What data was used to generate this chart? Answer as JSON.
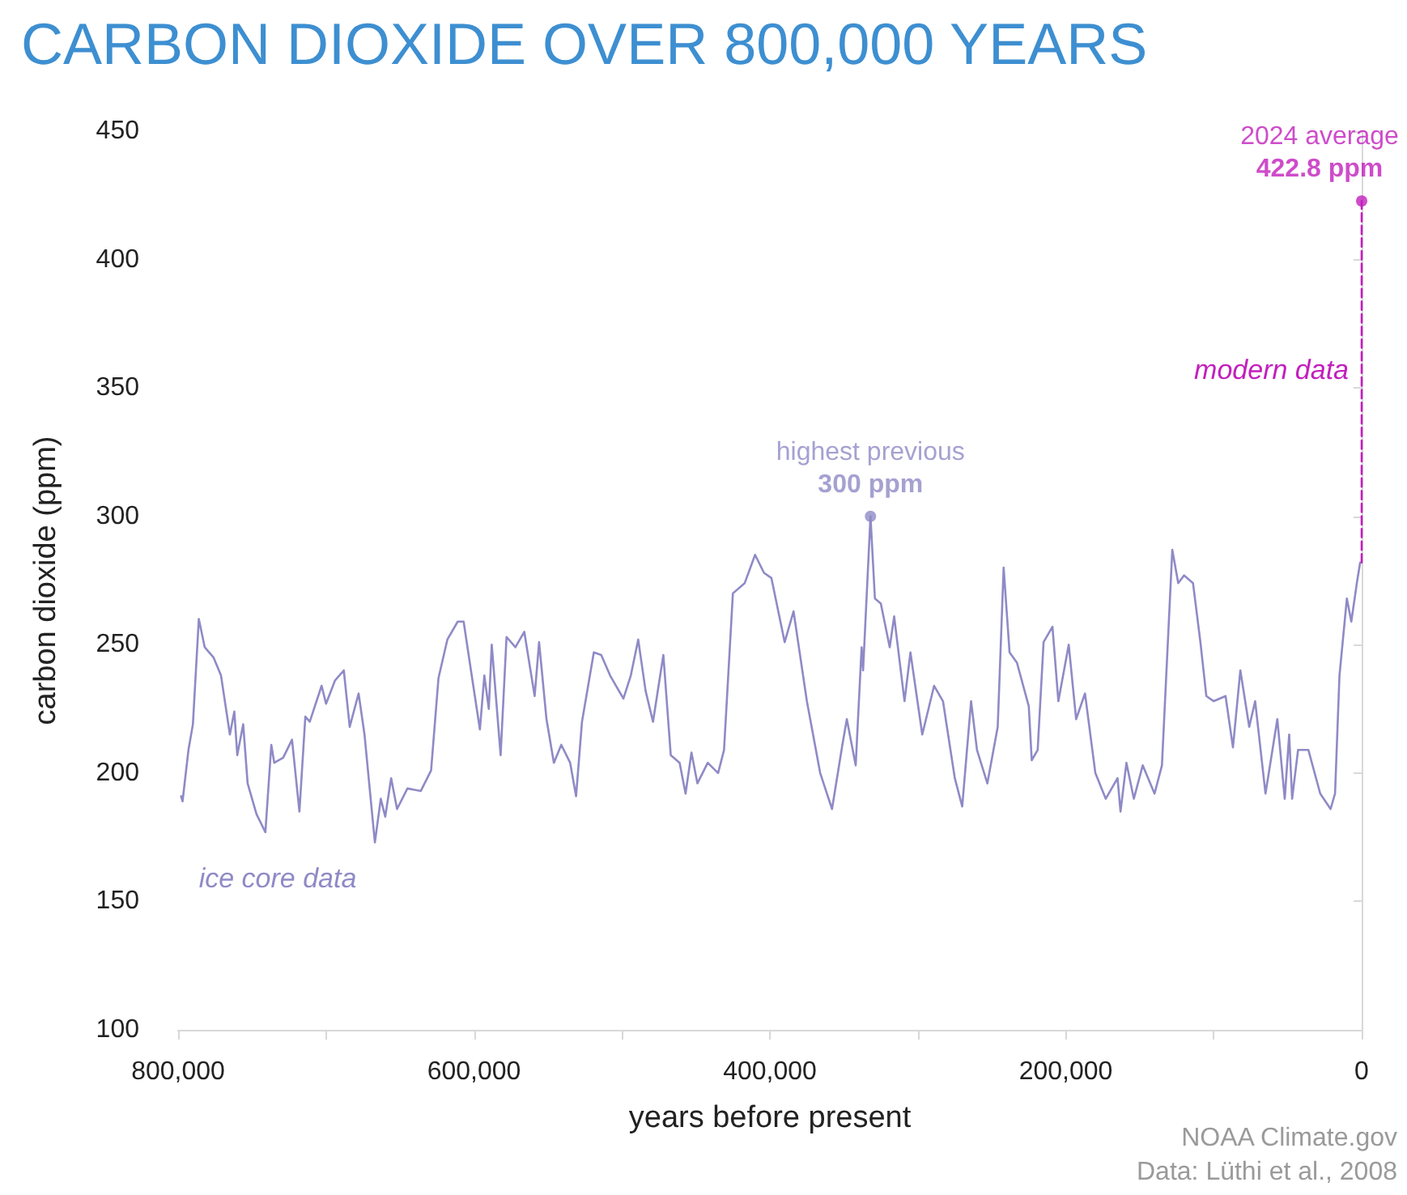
{
  "chart_data": {
    "type": "line",
    "title": "CARBON DIOXIDE OVER 800,000 YEARS",
    "xlabel": "years before present",
    "ylabel": "carbon dioxide (ppm)",
    "xlim": [
      800000,
      0
    ],
    "ylim": [
      100,
      450
    ],
    "xticks": [
      {
        "value": 800000,
        "label": "800,000"
      },
      {
        "value": 700000,
        "label": null
      },
      {
        "value": 600000,
        "label": "600,000"
      },
      {
        "value": 500000,
        "label": null
      },
      {
        "value": 400000,
        "label": "400,000"
      },
      {
        "value": 300000,
        "label": null
      },
      {
        "value": 200000,
        "label": "200,000"
      },
      {
        "value": 100000,
        "label": null
      },
      {
        "value": 0,
        "label": "0"
      }
    ],
    "yticks": [
      100,
      150,
      200,
      250,
      300,
      350,
      400,
      450
    ],
    "grid": false,
    "legend": false,
    "series": [
      {
        "name": "ice core data",
        "color": "#8f8ac6",
        "line_style": "solid",
        "x": [
          798000,
          797000,
          793000,
          790000,
          786000,
          782000,
          776000,
          771000,
          765000,
          762000,
          760000,
          756000,
          753000,
          747000,
          741000,
          737000,
          735000,
          729000,
          723000,
          718000,
          714000,
          711000,
          703000,
          700000,
          694000,
          688000,
          684000,
          678000,
          674000,
          667000,
          663000,
          660000,
          656000,
          652000,
          645000,
          636000,
          629000,
          624000,
          618000,
          611000,
          607000,
          601000,
          596000,
          593000,
          590000,
          588000,
          582000,
          578000,
          572000,
          566000,
          559000,
          556000,
          551000,
          546000,
          541000,
          535000,
          531000,
          527000,
          519000,
          514000,
          508000,
          499000,
          494000,
          489000,
          484000,
          479000,
          472000,
          467000,
          461000,
          457000,
          453000,
          449000,
          442000,
          435000,
          431000,
          425000,
          417000,
          410000,
          404000,
          399000,
          390000,
          384000,
          375000,
          366000,
          358000,
          351000,
          348000,
          342000,
          338000,
          337000,
          332000,
          329000,
          325000,
          319000,
          316000,
          309000,
          305000,
          297000,
          289000,
          283000,
          275000,
          270000,
          264000,
          260000,
          253000,
          246000,
          242000,
          238000,
          233000,
          225000,
          223000,
          219000,
          215000,
          209000,
          205000,
          198000,
          193000,
          187000,
          180000,
          173000,
          165000,
          163000,
          159000,
          154000,
          148000,
          140000,
          135000,
          128000,
          124000,
          120000,
          114000,
          109000,
          105000,
          100000,
          92000,
          87000,
          82000,
          76000,
          72000,
          65000,
          57000,
          52000,
          49000,
          47000,
          43000,
          36000,
          28000,
          21000,
          18000,
          15000,
          10000,
          7000,
          3000,
          1000
        ],
        "values": [
          191,
          189,
          209,
          219,
          260,
          249,
          245,
          238,
          215,
          224,
          207,
          219,
          196,
          184,
          177,
          211,
          204,
          206,
          213,
          185,
          222,
          220,
          234,
          227,
          236,
          240,
          218,
          231,
          215,
          173,
          190,
          183,
          198,
          186,
          194,
          193,
          201,
          237,
          252,
          259,
          259,
          236,
          217,
          238,
          225,
          250,
          207,
          253,
          249,
          255,
          230,
          251,
          221,
          204,
          211,
          204,
          191,
          220,
          247,
          246,
          238,
          229,
          238,
          252,
          232,
          220,
          246,
          207,
          204,
          192,
          208,
          196,
          204,
          200,
          209,
          270,
          274,
          285,
          278,
          276,
          251,
          263,
          228,
          200,
          186,
          211,
          221,
          203,
          249,
          240,
          300,
          268,
          266,
          249,
          261,
          228,
          247,
          215,
          234,
          228,
          198,
          187,
          228,
          209,
          196,
          218,
          280,
          247,
          243,
          226,
          205,
          209,
          251,
          257,
          228,
          250,
          221,
          231,
          200,
          190,
          198,
          185,
          204,
          190,
          203,
          192,
          203,
          287,
          274,
          277,
          274,
          251,
          230,
          228,
          230,
          210,
          240,
          218,
          228,
          192,
          221,
          190,
          215,
          190,
          209,
          209,
          192,
          186,
          192,
          238,
          268,
          259,
          275,
          282
        ]
      },
      {
        "name": "modern data",
        "color": "#c21fbd",
        "line_style": "dashed",
        "x": [
          0,
          0
        ],
        "values": [
          282,
          422.8
        ]
      }
    ],
    "annotations": [
      {
        "text": "2024 average\n422.8 ppm",
        "x": 0,
        "y": 422.8
      },
      {
        "text": "highest previous\n300 ppm",
        "x": 332000,
        "y": 300
      },
      "NOAA Climate.gov",
      "Data: Lüthi et al., 2008"
    ]
  }
}
